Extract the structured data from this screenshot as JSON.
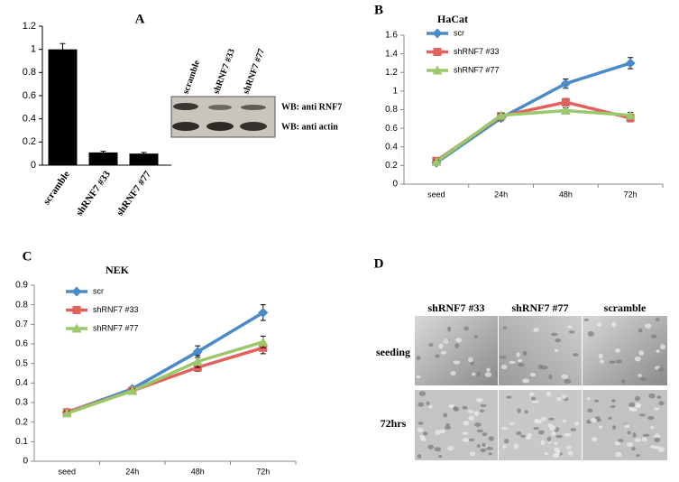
{
  "panel_labels": [
    "A",
    "B",
    "C",
    "D"
  ],
  "western_blot": {
    "lanes": [
      "scramble",
      "shRNF7 #33",
      "shRNF7 #77"
    ],
    "rows": [
      "WB: anti RNF7",
      "WB: anti actin"
    ]
  },
  "micrographs": {
    "columns": [
      "shRNF7 #33",
      "shRNF7 #77",
      "scramble"
    ],
    "rows": [
      "seeding",
      "72hrs"
    ]
  },
  "chart_data": [
    {
      "type": "bar",
      "categories": [
        "scramble",
        "shRNF7 #33",
        "shRNF7 #77"
      ],
      "values": [
        1.0,
        0.11,
        0.1
      ],
      "errors": [
        0.05,
        0.01,
        0.01
      ],
      "color": "#000000",
      "ylim": [
        0,
        1.2
      ],
      "yticks": [
        0,
        0.2,
        0.4,
        0.6,
        0.8,
        1,
        1.2
      ]
    },
    {
      "type": "line",
      "title": "HaCat",
      "categories": [
        "seed",
        "24h",
        "48h",
        "72h"
      ],
      "series": [
        {
          "name": "scr",
          "color": "#4a8ac8",
          "marker": "diamond",
          "values": [
            0.23,
            0.71,
            1.08,
            1.3
          ],
          "errors": [
            0.02,
            0.03,
            0.05,
            0.06
          ]
        },
        {
          "name": "shRNF7 #33",
          "color": "#e0625c",
          "marker": "square",
          "values": [
            0.25,
            0.73,
            0.88,
            0.71
          ],
          "errors": [
            0.02,
            0.02,
            0.04,
            0.04
          ]
        },
        {
          "name": "shRNF7 #77",
          "color": "#9bc86a",
          "marker": "triangle",
          "values": [
            0.24,
            0.74,
            0.79,
            0.74
          ],
          "errors": [
            0.02,
            0.02,
            0.03,
            0.03
          ]
        }
      ],
      "ylim": [
        0,
        1.6
      ],
      "yticks": [
        0,
        0.2,
        0.4,
        0.6,
        0.8,
        1,
        1.2,
        1.4,
        1.6
      ],
      "legend": "top-left"
    },
    {
      "type": "line",
      "title": "NEK",
      "categories": [
        "seed",
        "24h",
        "48h",
        "72h"
      ],
      "series": [
        {
          "name": "scr",
          "color": "#4a8ac8",
          "marker": "diamond",
          "values": [
            0.25,
            0.37,
            0.56,
            0.76
          ],
          "errors": [
            0.01,
            0.01,
            0.03,
            0.04
          ]
        },
        {
          "name": "shRNF7 #33",
          "color": "#e0625c",
          "marker": "square",
          "values": [
            0.25,
            0.36,
            0.48,
            0.58
          ],
          "errors": [
            0.01,
            0.01,
            0.02,
            0.03
          ]
        },
        {
          "name": "shRNF7 #77",
          "color": "#9bc86a",
          "marker": "triangle",
          "values": [
            0.245,
            0.36,
            0.51,
            0.61
          ],
          "errors": [
            0.01,
            0.01,
            0.03,
            0.03
          ]
        }
      ],
      "ylim": [
        0,
        0.9
      ],
      "yticks": [
        0,
        0.1,
        0.2,
        0.3,
        0.4,
        0.5,
        0.6,
        0.7,
        0.8,
        0.9
      ],
      "legend": "top-left"
    }
  ]
}
